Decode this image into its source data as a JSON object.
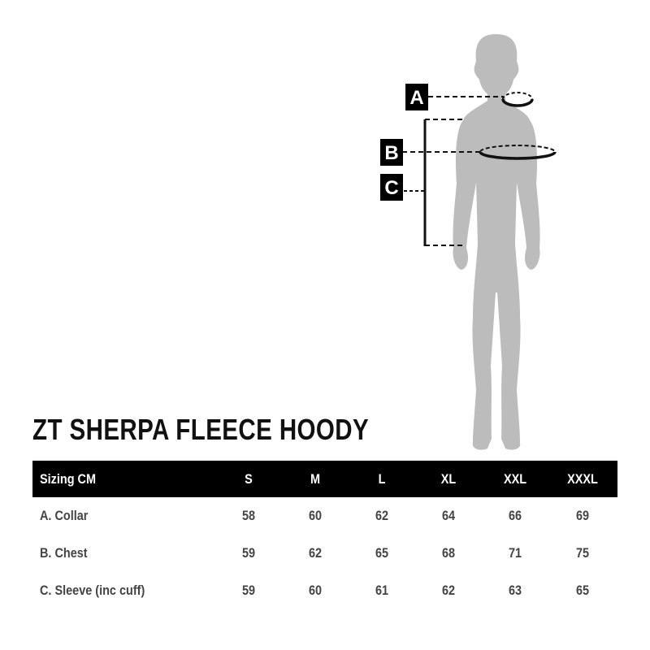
{
  "title": "ZT SHERPA FLEECE HOODY",
  "diagram": {
    "markers": [
      "A",
      "B",
      "C"
    ],
    "colors": {
      "silhouette": "#bcbcbc",
      "line": "#111111"
    }
  },
  "table": {
    "headers": [
      "Sizing CM",
      "S",
      "M",
      "L",
      "XL",
      "XXL",
      "XXXL"
    ],
    "rows": [
      {
        "label": "A. Collar",
        "values": [
          "58",
          "60",
          "62",
          "64",
          "66",
          "69"
        ]
      },
      {
        "label": "B. Chest",
        "values": [
          "59",
          "62",
          "65",
          "68",
          "71",
          "75"
        ]
      },
      {
        "label": "C. Sleeve (inc cuff)",
        "values": [
          "59",
          "60",
          "61",
          "62",
          "63",
          "65"
        ]
      }
    ]
  }
}
